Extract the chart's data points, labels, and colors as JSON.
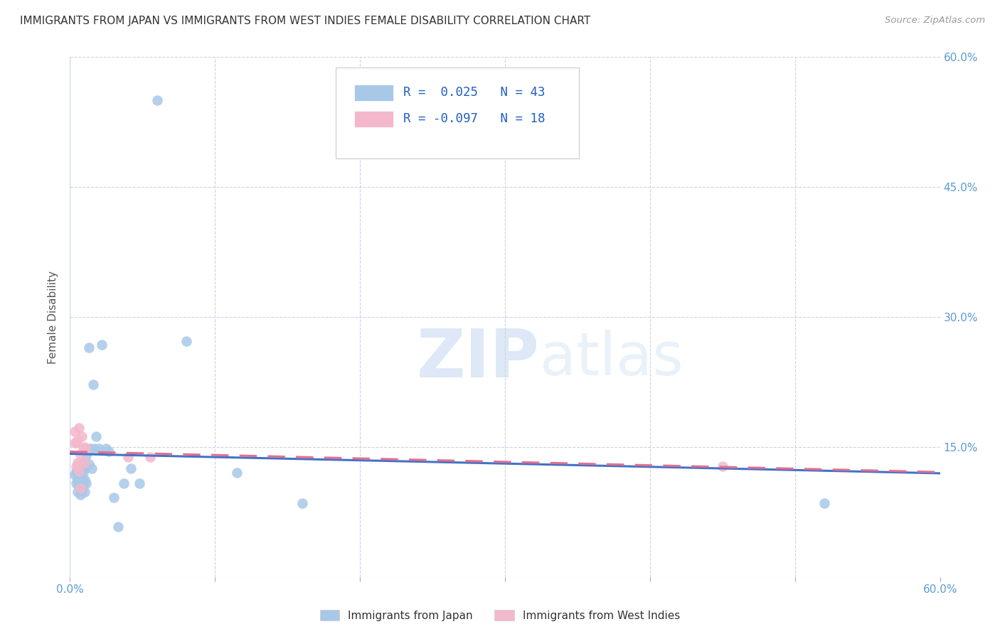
{
  "title": "IMMIGRANTS FROM JAPAN VS IMMIGRANTS FROM WEST INDIES FEMALE DISABILITY CORRELATION CHART",
  "source": "Source: ZipAtlas.com",
  "ylabel": "Female Disability",
  "xlim": [
    0.0,
    0.6
  ],
  "ylim": [
    0.0,
    0.6
  ],
  "yticks": [
    0.15,
    0.3,
    0.45,
    0.6
  ],
  "ytick_labels": [
    "15.0%",
    "30.0%",
    "45.0%",
    "60.0%"
  ],
  "xtick_minor": [
    0.1,
    0.2,
    0.3,
    0.4,
    0.5
  ],
  "japan_R": 0.025,
  "japan_N": 43,
  "wi_R": -0.097,
  "wi_N": 18,
  "japan_color": "#a8c8e8",
  "wi_color": "#f4b8cc",
  "japan_line_color": "#4472c4",
  "wi_line_color": "#e07090",
  "watermark_color": "#ddeeff",
  "grid_color": "#c8d4e8",
  "japan_x": [
    0.003,
    0.004,
    0.004,
    0.005,
    0.005,
    0.005,
    0.006,
    0.006,
    0.007,
    0.007,
    0.007,
    0.008,
    0.008,
    0.008,
    0.009,
    0.009,
    0.01,
    0.01,
    0.01,
    0.011,
    0.011,
    0.012,
    0.013,
    0.013,
    0.014,
    0.015,
    0.016,
    0.017,
    0.018,
    0.02,
    0.022,
    0.025,
    0.027,
    0.03,
    0.033,
    0.037,
    0.042,
    0.048,
    0.06,
    0.08,
    0.115,
    0.16,
    0.52
  ],
  "japan_y": [
    0.118,
    0.122,
    0.108,
    0.112,
    0.098,
    0.125,
    0.105,
    0.12,
    0.11,
    0.095,
    0.125,
    0.115,
    0.1,
    0.13,
    0.108,
    0.12,
    0.098,
    0.112,
    0.125,
    0.14,
    0.108,
    0.148,
    0.265,
    0.13,
    0.148,
    0.125,
    0.222,
    0.148,
    0.162,
    0.148,
    0.268,
    0.148,
    0.145,
    0.092,
    0.058,
    0.108,
    0.125,
    0.108,
    0.55,
    0.272,
    0.12,
    0.085,
    0.085
  ],
  "wi_x": [
    0.003,
    0.003,
    0.004,
    0.004,
    0.005,
    0.005,
    0.006,
    0.006,
    0.007,
    0.007,
    0.008,
    0.009,
    0.01,
    0.01,
    0.011,
    0.04,
    0.055,
    0.45
  ],
  "wi_y": [
    0.155,
    0.168,
    0.128,
    0.155,
    0.132,
    0.158,
    0.172,
    0.122,
    0.142,
    0.102,
    0.162,
    0.148,
    0.132,
    0.15,
    0.148,
    0.138,
    0.138,
    0.128
  ]
}
